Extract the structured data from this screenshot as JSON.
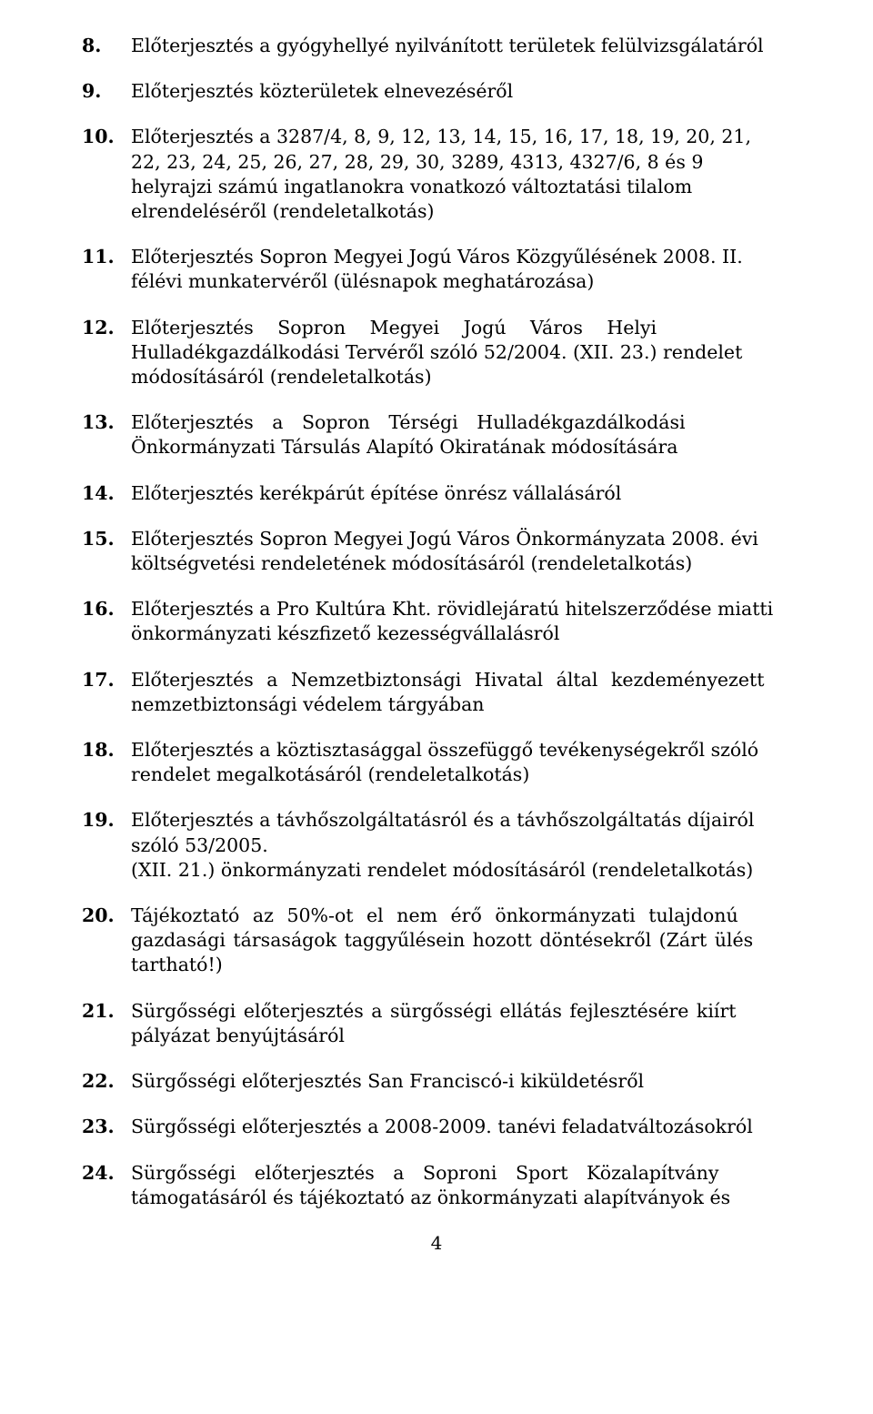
{
  "items": [
    {
      "num": "8.",
      "lines": [
        "Előterjesztés a gyógyhellyé nyilvánított területek felülvizsgálatáról"
      ]
    },
    {
      "num": "9.",
      "lines": [
        "Előterjesztés közterületek elnevezéséről"
      ]
    },
    {
      "num": "10.",
      "lines": [
        "Előterjesztés a 3287/4, 8, 9, 12, 13, 14, 15, 16, 17, 18, 19, 20, 21,",
        "22, 23, 24, 25, 26, 27, 28, 29, 30, 3289, 4313, 4327/6, 8 és 9",
        "helyrajzi számú ingatlanokra vonatkozó változtatási tilalom",
        "elrendeléséről (rendeletalkotás)"
      ]
    },
    {
      "num": "11.",
      "lines": [
        "Előterjesztés Sopron Megyei Jogú Város Közgyűlésének 2008. II.",
        "félévi munkatervéről (ülésnapok meghatározása)"
      ]
    },
    {
      "num": "12.",
      "lines": [
        "Előterjesztés   Sopron   Megyei   Jogú   Város   Helyi",
        "Hulladékgazdálkodási Tervéről szóló 52/2004. (XII. 23.) rendelet",
        "módosításáról (rendeletalkotás)"
      ],
      "wide": [
        1,
        0,
        0
      ]
    },
    {
      "num": "13.",
      "lines": [
        "Előterjesztés  a  Sopron  Térségi  Hulladékgazdálkodási",
        "Önkormányzati Társulás Alapító Okiratának módosítására"
      ],
      "wide": [
        4,
        0
      ]
    },
    {
      "num": "14.",
      "lines": [
        "Előterjesztés kerékpárút építése önrész vállalásáról"
      ]
    },
    {
      "num": "15.",
      "lines": [
        "Előterjesztés Sopron Megyei Jogú Város Önkormányzata 2008. évi",
        "költségvetési rendeletének módosításáról (rendeletalkotás)"
      ]
    },
    {
      "num": "16.",
      "lines": [
        "Előterjesztés a Pro Kultúra Kht. rövidlejáratú hitelszerződése miatti",
        "önkormányzati készfizető kezességvállalásról"
      ]
    },
    {
      "num": "17.",
      "lines": [
        "Előterjesztés a Nemzetbiztonsági Hivatal által kezdeményezett",
        "nemzetbiztonsági védelem tárgyában"
      ],
      "wide": [
        2,
        0
      ]
    },
    {
      "num": "18.",
      "lines": [
        "Előterjesztés a köztisztasággal összefüggő tevékenységekről szóló",
        "rendelet megalkotásáról (rendeletalkotás)"
      ]
    },
    {
      "num": "19.",
      "lines": [
        "Előterjesztés a távhőszolgáltatásról és a távhőszolgáltatás díjairól",
        "szóló                                                                                                53/2005.",
        "(XII. 21.) önkormányzati rendelet módosításáról (rendeletalkotás)"
      ]
    },
    {
      "num": "20.",
      "lines": [
        "Tájékoztató az 50%-ot el nem érő önkormányzati tulajdonú",
        "gazdasági társaságok taggyűlésein hozott döntésekről (Zárt ülés",
        "tartható!)"
      ],
      "wide": [
        2,
        3,
        0
      ]
    },
    {
      "num": "21.",
      "lines": [
        "Sürgősségi előterjesztés a sürgősségi ellátás fejlesztésére kiírt",
        "pályázat benyújtásáról"
      ],
      "wide": [
        3,
        0
      ]
    },
    {
      "num": "22.",
      "lines": [
        "Sürgősségi előterjesztés San Franciscó-i kiküldetésről"
      ]
    },
    {
      "num": "23.",
      "lines": [
        "Sürgősségi előterjesztés a 2008-2009. tanévi feladatváltozásokról"
      ]
    },
    {
      "num": "24.",
      "lines": [
        "Sürgősségi  előterjesztés  a  Soproni  Sport  Közalapítvány",
        "támogatásáról és tájékoztató az önkormányzati alapítványok és"
      ],
      "wide": [
        4,
        0
      ]
    }
  ],
  "pageNumber": "4"
}
